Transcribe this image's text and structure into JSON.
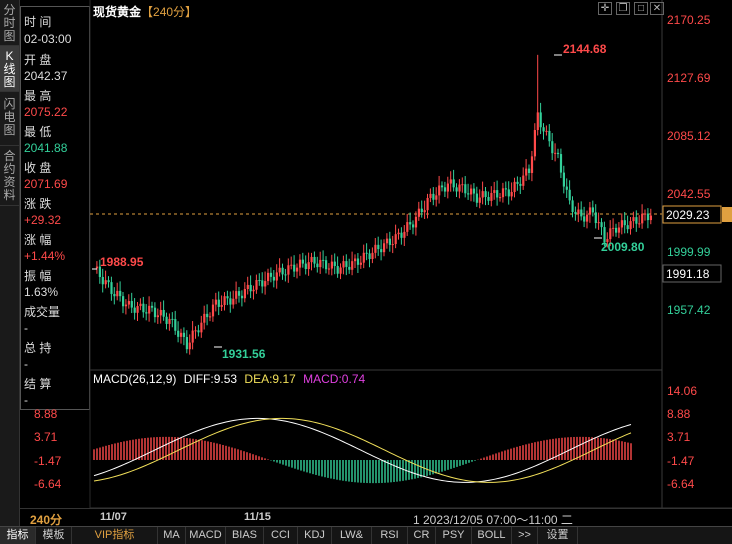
{
  "vertical_tabs": [
    {
      "label": "分\n时\n图",
      "active": false
    },
    {
      "label": "K\n线\n图",
      "active": true
    },
    {
      "label": "闪\n电\n图",
      "active": false
    },
    {
      "label": "合\n约\n资\n料",
      "active": false
    }
  ],
  "info_panel": {
    "time_label": "时 间",
    "time_value": "02-03:00",
    "open_label": "开 盘",
    "open_value": "2042.37",
    "high_label": "最 高",
    "high_value": "2075.22",
    "low_label": "最 低",
    "low_value": "2041.88",
    "close_label": "收 盘",
    "close_value": "2071.69",
    "change_label": "涨 跌",
    "change_value": "+29.32",
    "pct_label": "涨 幅",
    "pct_value": "+1.44%",
    "amp_label": "振 幅",
    "amp_value": "1.63%",
    "volume_label": "成交量",
    "volume_value": "-",
    "oi_label": "总 持",
    "oi_value": "-",
    "settle_label": "结 算",
    "settle_value": "-"
  },
  "title": {
    "name": "现货黄金",
    "timeframe": "【240分】"
  },
  "toolbar_icons": [
    "crosshair-icon",
    "window-restore-icon",
    "maximize-icon",
    "close-icon"
  ],
  "price_axis": {
    "ticks": [
      "2170.25",
      "2127.69",
      "2085.12",
      "2042.55",
      "1999.99",
      "1957.42"
    ],
    "current_price": "2029.23",
    "cursor_price": "1991.18"
  },
  "annotations": {
    "start": "1988.95",
    "low": "1931.56",
    "high": "2144.68",
    "recent_low": "2009.80"
  },
  "macd": {
    "name": "MACD(26,12,9)",
    "diff": "DIFF:9.53",
    "dea": "DEA:9.17",
    "macd": "MACD:0.74",
    "ticks": [
      "14.06",
      "8.88",
      "3.71",
      "-1.47",
      "-6.64"
    ],
    "left_ticks": [
      "8.88",
      "3.71",
      "-1.47",
      "-6.64"
    ]
  },
  "bottom_axis": {
    "period": "240分",
    "dates": [
      "11/07",
      "11/15"
    ],
    "cursor": "1  2023/12/05 07:00～11:00 二"
  },
  "tabs": [
    "指标",
    "模板",
    "VIP指标",
    "MA",
    "MACD",
    "BIAS",
    "CCI",
    "KDJ",
    "LW&",
    "RSI",
    "CR",
    "PSY",
    "BOLL",
    ">>",
    "设置"
  ],
  "colors": {
    "up": "#ff4a4a",
    "down": "#33d09a",
    "diff": "#ffffff",
    "dea": "#f2e05a",
    "accent": "#e0a040"
  }
}
